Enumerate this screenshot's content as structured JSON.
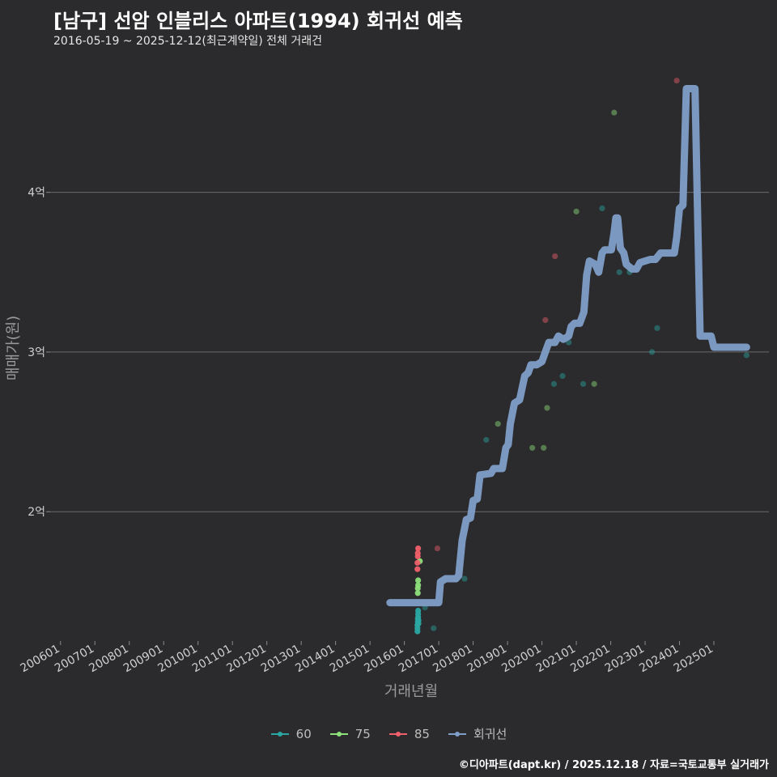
{
  "header": {
    "title": "[남구] 선암 인블리스 아파트(1994) 회귀선 예측",
    "subtitle": "2016-05-19 ~ 2025-12-12(최근계약일) 전체 거래건"
  },
  "footer": {
    "credit": "©디아파트(dapt.kr) / 2025.12.18 / 자료=국토교통부 실거래가"
  },
  "chart_data": {
    "type": "scatter",
    "title": "[남구] 선암 인블리스 아파트(1994) 회귀선 예측",
    "subtitle": "2016-05-19 ~ 2025-12-12(최근계약일) 전체 거래건",
    "xlabel": "거래년월",
    "ylabel": "매매가(원)",
    "xlim": [
      2005.7,
      2026.6
    ],
    "ylim": [
      1.2,
      4.85
    ],
    "x_ticks": [
      {
        "value": 2006.0,
        "label": "200601"
      },
      {
        "value": 2007.0,
        "label": "200701"
      },
      {
        "value": 2008.0,
        "label": "200801"
      },
      {
        "value": 2009.0,
        "label": "200901"
      },
      {
        "value": 2010.0,
        "label": "201001"
      },
      {
        "value": 2011.0,
        "label": "201101"
      },
      {
        "value": 2012.0,
        "label": "201201"
      },
      {
        "value": 2013.0,
        "label": "201301"
      },
      {
        "value": 2014.0,
        "label": "201401"
      },
      {
        "value": 2015.0,
        "label": "201501"
      },
      {
        "value": 2016.0,
        "label": "201601"
      },
      {
        "value": 2017.0,
        "label": "201701"
      },
      {
        "value": 2018.0,
        "label": "201801"
      },
      {
        "value": 2019.0,
        "label": "201901"
      },
      {
        "value": 2020.0,
        "label": "202001"
      },
      {
        "value": 2021.0,
        "label": "202101"
      },
      {
        "value": 2022.0,
        "label": "202201"
      },
      {
        "value": 2023.0,
        "label": "202301"
      },
      {
        "value": 2024.0,
        "label": "202401"
      },
      {
        "value": 2025.0,
        "label": "202501"
      }
    ],
    "y_ticks": [
      {
        "value": 2,
        "label": "2억"
      },
      {
        "value": 3,
        "label": "3억"
      },
      {
        "value": 4,
        "label": "4억"
      }
    ],
    "y_unit": "억원",
    "grid": true,
    "legend": {
      "position": "bottom",
      "entries": [
        {
          "name": "60",
          "color": "#2aa6a3"
        },
        {
          "name": "75",
          "color": "#8de07a"
        },
        {
          "name": "85",
          "color": "#f0606c"
        },
        {
          "name": "회귀선",
          "color": "#7f9ec8"
        }
      ]
    },
    "series": [
      {
        "name": "60",
        "color": "#2aa6a3",
        "points": [
          [
            2016.38,
            1.25
          ],
          [
            2016.38,
            1.27
          ],
          [
            2016.38,
            1.29
          ],
          [
            2016.39,
            1.31
          ],
          [
            2016.39,
            1.33
          ],
          [
            2016.4,
            1.34
          ],
          [
            2016.4,
            1.36
          ],
          [
            2016.4,
            1.38
          ],
          [
            2016.41,
            1.3
          ],
          [
            2016.41,
            1.32
          ],
          [
            2016.6,
            1.4
          ],
          [
            2016.85,
            1.27
          ],
          [
            2017.75,
            1.58
          ],
          [
            2018.38,
            2.45
          ],
          [
            2020.35,
            2.8
          ],
          [
            2020.6,
            2.85
          ],
          [
            2020.78,
            3.06
          ],
          [
            2021.2,
            2.8
          ],
          [
            2021.75,
            3.9
          ],
          [
            2022.25,
            3.5
          ],
          [
            2022.55,
            3.5
          ],
          [
            2023.2,
            3.0
          ],
          [
            2023.35,
            3.15
          ],
          [
            2024.8,
            3.1
          ],
          [
            2025.95,
            2.98
          ]
        ]
      },
      {
        "name": "75",
        "color": "#8de07a",
        "points": [
          [
            2016.39,
            1.49
          ],
          [
            2016.39,
            1.52
          ],
          [
            2016.4,
            1.54
          ],
          [
            2016.4,
            1.57
          ],
          [
            2016.45,
            1.69
          ],
          [
            2018.72,
            2.55
          ],
          [
            2019.72,
            2.4
          ],
          [
            2020.05,
            2.4
          ],
          [
            2020.15,
            2.65
          ],
          [
            2021.0,
            3.88
          ],
          [
            2021.52,
            2.8
          ],
          [
            2022.1,
            4.5
          ]
        ]
      },
      {
        "name": "85",
        "color": "#f0606c",
        "points": [
          [
            2016.38,
            1.64
          ],
          [
            2016.38,
            1.68
          ],
          [
            2016.39,
            1.72
          ],
          [
            2016.39,
            1.74
          ],
          [
            2016.4,
            1.77
          ],
          [
            2016.96,
            1.77
          ],
          [
            2020.1,
            3.2
          ],
          [
            2020.38,
            3.6
          ],
          [
            2023.92,
            4.7
          ]
        ]
      },
      {
        "name": "회귀선",
        "color": "#7f9ec8",
        "points": [
          [
            2015.58,
            1.43
          ],
          [
            2016.9,
            1.43
          ],
          [
            2017.0,
            1.43
          ],
          [
            2017.05,
            1.56
          ],
          [
            2017.2,
            1.58
          ],
          [
            2017.5,
            1.58
          ],
          [
            2017.58,
            1.6
          ],
          [
            2017.68,
            1.82
          ],
          [
            2017.8,
            1.95
          ],
          [
            2017.92,
            1.96
          ],
          [
            2018.0,
            2.07
          ],
          [
            2018.12,
            2.08
          ],
          [
            2018.2,
            2.23
          ],
          [
            2018.52,
            2.24
          ],
          [
            2018.6,
            2.27
          ],
          [
            2018.85,
            2.27
          ],
          [
            2018.95,
            2.4
          ],
          [
            2019.02,
            2.42
          ],
          [
            2019.08,
            2.55
          ],
          [
            2019.2,
            2.68
          ],
          [
            2019.35,
            2.7
          ],
          [
            2019.5,
            2.85
          ],
          [
            2019.6,
            2.87
          ],
          [
            2019.68,
            2.92
          ],
          [
            2019.85,
            2.92
          ],
          [
            2020.0,
            2.94
          ],
          [
            2020.1,
            3.0
          ],
          [
            2020.2,
            3.06
          ],
          [
            2020.38,
            3.06
          ],
          [
            2020.48,
            3.1
          ],
          [
            2020.62,
            3.08
          ],
          [
            2020.78,
            3.1
          ],
          [
            2020.85,
            3.16
          ],
          [
            2020.95,
            3.18
          ],
          [
            2021.1,
            3.18
          ],
          [
            2021.22,
            3.25
          ],
          [
            2021.3,
            3.48
          ],
          [
            2021.38,
            3.57
          ],
          [
            2021.55,
            3.55
          ],
          [
            2021.65,
            3.5
          ],
          [
            2021.75,
            3.62
          ],
          [
            2021.82,
            3.64
          ],
          [
            2022.02,
            3.64
          ],
          [
            2022.1,
            3.75
          ],
          [
            2022.15,
            3.84
          ],
          [
            2022.2,
            3.84
          ],
          [
            2022.28,
            3.65
          ],
          [
            2022.38,
            3.62
          ],
          [
            2022.45,
            3.55
          ],
          [
            2022.62,
            3.52
          ],
          [
            2022.75,
            3.52
          ],
          [
            2022.85,
            3.56
          ],
          [
            2023.0,
            3.57
          ],
          [
            2023.15,
            3.58
          ],
          [
            2023.3,
            3.58
          ],
          [
            2023.45,
            3.62
          ],
          [
            2023.85,
            3.62
          ],
          [
            2023.92,
            3.72
          ],
          [
            2024.0,
            3.9
          ],
          [
            2024.1,
            3.92
          ],
          [
            2024.2,
            4.65
          ],
          [
            2024.45,
            4.65
          ],
          [
            2024.6,
            3.1
          ],
          [
            2024.92,
            3.1
          ],
          [
            2025.0,
            3.03
          ],
          [
            2025.95,
            3.03
          ]
        ]
      }
    ]
  }
}
